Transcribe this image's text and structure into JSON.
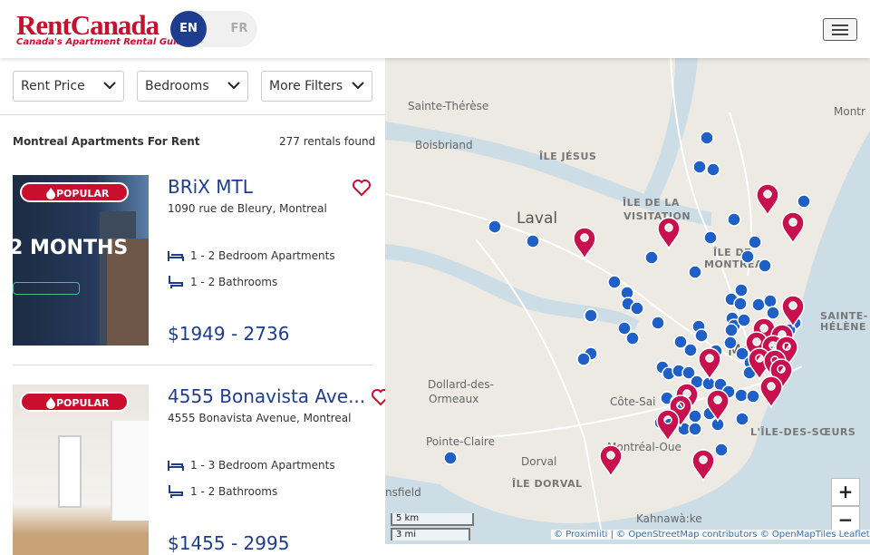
{
  "header": {
    "logo": "RentCanada",
    "tagline": "Canada's Apartment Rental Guide",
    "languages": [
      "EN",
      "FR"
    ]
  },
  "filters": [
    "Rent Price",
    "Bedrooms",
    "More Filters"
  ],
  "results": {
    "heading": "Montreal Apartments For Rent",
    "count": "277 rentals found"
  },
  "listings": [
    {
      "badge": "POPULAR",
      "image_text": "2 MONTHS",
      "title": "BRiX MTL",
      "address": "1090 rue de Bleury, Montreal",
      "bedrooms": "1 - 2 Bedroom Apartments",
      "bathrooms": "1 - 2 Bathrooms",
      "price": "$1949 - 2736"
    },
    {
      "badge": "POPULAR",
      "title": "4555 Bonavista Ave...",
      "address": "4555 Bonavista Avenue, Montreal",
      "bedrooms": "1 - 3 Bedroom Apartments",
      "bathrooms": "1 - 2 Bathrooms",
      "price": "$1455 - 2995"
    }
  ],
  "map": {
    "labels": [
      "Sainte-Thérèse",
      "Boisbriand",
      "ÎLE JÉSUS",
      "ÎLE DE LA",
      "VISITATION",
      "Laval",
      "ÎLE DE",
      "MONTRÉAL",
      "Dollard-des-",
      "Ormeaux",
      "Côte-Sai",
      "Pointe-Claire",
      "Dorval",
      "Montréal-Oue",
      "ÎLE DORVAL",
      "L'ÎLE-DES-SŒURS",
      "SAINTE-",
      "HÉLÈNE",
      "Kahnawà:ke",
      "Montréal",
      "Montr",
      "nsfield"
    ],
    "zoom": [
      "+",
      "−"
    ],
    "scale": [
      "5 km",
      "3 mi"
    ],
    "attribution": "© Proximiiti | © OpenStreetMap contributors © OpenMapTiles Leaflet"
  }
}
